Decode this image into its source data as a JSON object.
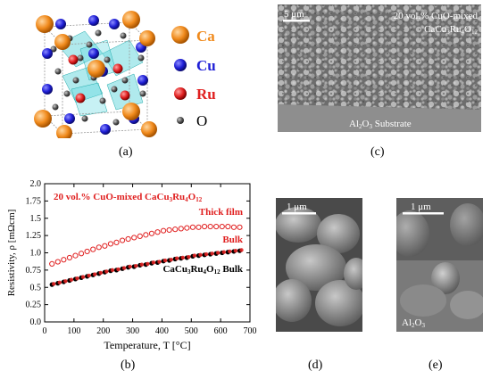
{
  "panel_a": {
    "caption": "(a)",
    "legend": [
      {
        "label": "Ca",
        "color": "#f08a1c",
        "text_color": "#f08a1c"
      },
      {
        "label": "Cu",
        "color": "#1f1fd6",
        "text_color": "#1f1fd6"
      },
      {
        "label": "Ru",
        "color": "#e02020",
        "text_color": "#e02020"
      },
      {
        "label": "O",
        "color": "#555555",
        "text_color": "#000000"
      }
    ]
  },
  "panel_c": {
    "caption": "(c)",
    "scale": "5 μm",
    "label_line1": "20 vol.% CuO-mixed",
    "label_line2_prefix": "CaCu",
    "label_line2_sub1": "3",
    "label_line2_mid": "Ru",
    "label_line2_sub2": "4",
    "label_line2_suffix": "O",
    "label_line2_sub3": "12",
    "substrate_prefix": "Al",
    "substrate_sub1": "2",
    "substrate_mid": "O",
    "substrate_sub2": "3",
    "substrate_suffix": " Substrate"
  },
  "panel_b": {
    "caption": "(b)",
    "chart_data": {
      "type": "scatter",
      "title": "20 vol.% CuO-mixed CaCu3Ru4O12",
      "xlabel": "Temperature, T [°C]",
      "ylabel": "Resistivity, ρ [mΩcm]",
      "xlim": [
        0,
        700
      ],
      "ylim": [
        0,
        2.0
      ],
      "xticks": [
        0,
        100,
        200,
        300,
        400,
        500,
        600,
        700
      ],
      "yticks": [
        0.0,
        0.25,
        0.5,
        0.75,
        1.0,
        1.25,
        1.5,
        1.75,
        2.0
      ],
      "ytick_labels": [
        "0.0",
        "0.25",
        "0.5",
        "0.75",
        "1.0",
        "1.25",
        "1.5",
        "1.75",
        "2.0"
      ],
      "annotations": {
        "title_prefix": "20 vol.% CuO-mixed CaCu",
        "title_sub1": "3",
        "title_mid": "Ru",
        "title_sub2": "4",
        "title_suffix": "O",
        "title_sub3": "12",
        "thick_film": "Thick film",
        "bulk": "Bulk",
        "ref_prefix": "CaCu",
        "ref_sub1": "3",
        "ref_mid": "Ru",
        "ref_sub2": "4",
        "ref_suffix": "O",
        "ref_sub3": "12",
        "ref_tail": " Bulk"
      },
      "series": [
        {
          "name": "Thick film",
          "marker": "open-circle",
          "color": "#e02020",
          "x": [
            25,
            45,
            65,
            85,
            105,
            125,
            145,
            165,
            185,
            205,
            225,
            245,
            265,
            285,
            305,
            325,
            345,
            365,
            385,
            405,
            425,
            445,
            465,
            485,
            505,
            525,
            545,
            565,
            585,
            605,
            625,
            645,
            665
          ],
          "y": [
            0.84,
            0.87,
            0.9,
            0.93,
            0.96,
            0.99,
            1.02,
            1.05,
            1.08,
            1.1,
            1.13,
            1.15,
            1.18,
            1.2,
            1.22,
            1.24,
            1.26,
            1.28,
            1.3,
            1.32,
            1.33,
            1.34,
            1.35,
            1.36,
            1.37,
            1.37,
            1.38,
            1.38,
            1.38,
            1.38,
            1.38,
            1.37,
            1.37
          ]
        },
        {
          "name": "Bulk",
          "marker": "filled-circle",
          "color": "#e02020",
          "x": [
            25,
            45,
            65,
            85,
            105,
            125,
            145,
            165,
            185,
            205,
            225,
            245,
            265,
            285,
            305,
            325,
            345,
            365,
            385,
            405,
            425,
            445,
            465,
            485,
            505,
            525,
            545,
            565,
            585,
            605,
            625,
            645,
            665
          ],
          "y": [
            0.55,
            0.57,
            0.59,
            0.61,
            0.63,
            0.65,
            0.67,
            0.69,
            0.71,
            0.73,
            0.75,
            0.76,
            0.78,
            0.8,
            0.81,
            0.83,
            0.84,
            0.86,
            0.87,
            0.89,
            0.9,
            0.92,
            0.93,
            0.94,
            0.96,
            0.97,
            0.98,
            0.99,
            1.0,
            1.01,
            1.02,
            1.03,
            1.04
          ]
        },
        {
          "name": "CaCu3Ru4O12 Bulk",
          "marker": "filled-circle",
          "color": "#000000",
          "x": [
            25,
            45,
            65,
            85,
            105,
            125,
            145,
            165,
            185,
            205,
            225,
            245,
            265,
            285,
            305,
            325,
            345,
            365,
            385,
            405,
            425,
            445,
            465,
            485,
            505,
            525,
            545,
            565,
            585,
            605,
            625,
            645,
            665
          ],
          "y": [
            0.54,
            0.56,
            0.58,
            0.6,
            0.62,
            0.64,
            0.66,
            0.68,
            0.7,
            0.72,
            0.74,
            0.75,
            0.77,
            0.79,
            0.8,
            0.82,
            0.83,
            0.85,
            0.86,
            0.88,
            0.89,
            0.91,
            0.92,
            0.93,
            0.95,
            0.96,
            0.97,
            0.98,
            0.99,
            1.0,
            1.01,
            1.02,
            1.03
          ]
        }
      ]
    }
  },
  "panel_d": {
    "caption": "(d)",
    "scale": "1 μm"
  },
  "panel_e": {
    "caption": "(e)",
    "scale": "1 μm",
    "label_prefix": "Al",
    "label_sub1": "2",
    "label_mid": "O",
    "label_sub2": "3"
  }
}
